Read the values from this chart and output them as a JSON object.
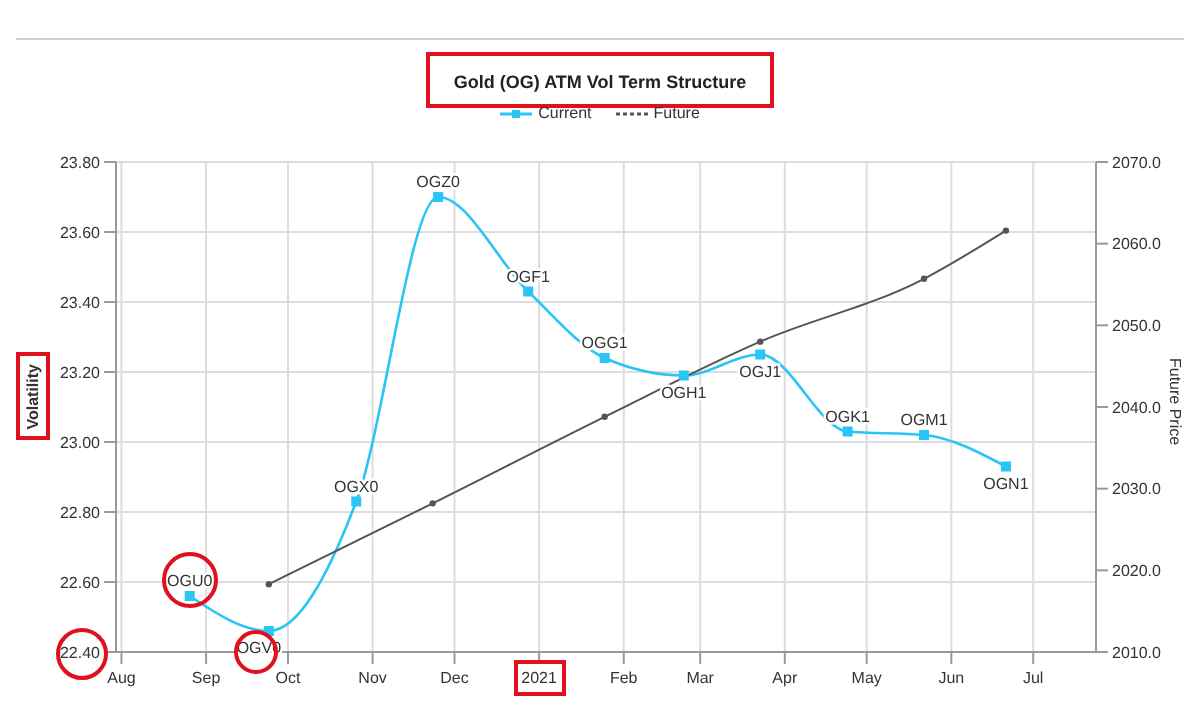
{
  "chart_data": {
    "type": "line",
    "title": "Gold (OG) ATM Vol Term Structure",
    "ylabel": "Volatility",
    "y2label": "Future Price",
    "legend": "top",
    "grid": true,
    "line_style": "solid",
    "xlim": [
      "2020-07-30",
      "2021-07-24"
    ],
    "xticks": [
      {
        "value": "2020-08-01",
        "label": "Aug"
      },
      {
        "value": "2020-09-01",
        "label": "Sep"
      },
      {
        "value": "2020-10-01",
        "label": "Oct"
      },
      {
        "value": "2020-11-01",
        "label": "Nov"
      },
      {
        "value": "2020-12-01",
        "label": "Dec"
      },
      {
        "value": "2021-01-01",
        "label": "2021"
      },
      {
        "value": "2021-02-01",
        "label": "Feb"
      },
      {
        "value": "2021-03-01",
        "label": "Mar"
      },
      {
        "value": "2021-04-01",
        "label": "Apr"
      },
      {
        "value": "2021-05-01",
        "label": "May"
      },
      {
        "value": "2021-06-01",
        "label": "Jun"
      },
      {
        "value": "2021-07-01",
        "label": "Jul"
      }
    ],
    "ylim": [
      22.4,
      23.8
    ],
    "yticks": [
      {
        "value": 22.4,
        "label": "22.40"
      },
      {
        "value": 22.6,
        "label": "22.60"
      },
      {
        "value": 22.8,
        "label": "22.80"
      },
      {
        "value": 23.0,
        "label": "23.00"
      },
      {
        "value": 23.2,
        "label": "23.20"
      },
      {
        "value": 23.4,
        "label": "23.40"
      },
      {
        "value": 23.6,
        "label": "23.60"
      },
      {
        "value": 23.8,
        "label": "23.80"
      }
    ],
    "y2lim": [
      2010,
      2070
    ],
    "y2ticks": [
      {
        "value": 2010,
        "label": "2010.0"
      },
      {
        "value": 2020,
        "label": "2020.0"
      },
      {
        "value": 2030,
        "label": "2030.0"
      },
      {
        "value": 2040,
        "label": "2040.0"
      },
      {
        "value": 2050,
        "label": "2050.0"
      },
      {
        "value": 2060,
        "label": "2060.0"
      },
      {
        "value": 2070,
        "label": "2070.0"
      }
    ],
    "series": [
      {
        "name": "Current",
        "color": "#29c5f6",
        "marker": "square",
        "x": [
          "2020-08-26",
          "2020-09-24",
          "2020-10-26",
          "2020-11-25",
          "2020-12-28",
          "2021-01-25",
          "2021-02-23",
          "2021-03-23",
          "2021-04-24",
          "2021-05-22",
          "2021-06-21"
        ],
        "values": [
          22.56,
          22.46,
          22.83,
          23.7,
          23.43,
          23.24,
          23.19,
          23.25,
          23.03,
          23.02,
          22.93
        ]
      },
      {
        "name": "Future",
        "color": "#555555",
        "marker": "circle",
        "axis": "y2",
        "x": [
          "2020-09-24",
          "2020-11-23",
          "2021-01-25",
          "2021-03-23",
          "2021-05-22",
          "2021-06-21"
        ],
        "values": [
          2018.3,
          2028.2,
          2038.8,
          2048.0,
          2055.7,
          2061.6
        ]
      }
    ],
    "annotations": [
      {
        "text": "OGU0",
        "x": "2020-08-26",
        "y": 22.56
      },
      {
        "text": "OGV0",
        "x": "2020-09-24",
        "y": 22.46
      },
      {
        "text": "OGX0",
        "x": "2020-10-26",
        "y": 22.83
      },
      {
        "text": "OGZ0",
        "x": "2020-11-25",
        "y": 23.7
      },
      {
        "text": "OGF1",
        "x": "2020-12-28",
        "y": 23.43
      },
      {
        "text": "OGG1",
        "x": "2021-01-25",
        "y": 23.24
      },
      {
        "text": "OGH1",
        "x": "2021-02-23",
        "y": 23.19
      },
      {
        "text": "OGJ1",
        "x": "2021-03-23",
        "y": 23.25
      },
      {
        "text": "OGK1",
        "x": "2021-04-24",
        "y": 23.03
      },
      {
        "text": "OGM1",
        "x": "2021-05-22",
        "y": 23.02
      },
      {
        "text": "OGN1",
        "x": "2021-06-21",
        "y": 22.93
      }
    ]
  }
}
